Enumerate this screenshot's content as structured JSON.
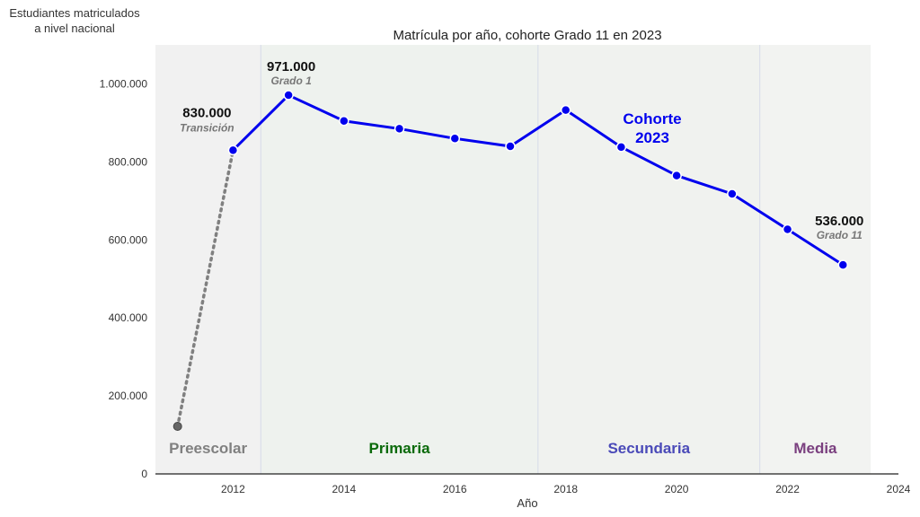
{
  "chart_data": {
    "type": "line",
    "title": "Matrícula por año, cohorte Grado 11 en 2023",
    "xlabel": "Año",
    "ylabel": "Estudiantes matriculados a nivel nacional",
    "xlim": [
      2010.6,
      2024
    ],
    "ylim": [
      0,
      1100000
    ],
    "x_ticks": [
      "2012",
      "2014",
      "2016",
      "2018",
      "2020",
      "2022",
      "2024"
    ],
    "y_ticks": [
      "0",
      "200.000",
      "400.000",
      "600.000",
      "800.000",
      "1.000.000"
    ],
    "grid": false,
    "series": [
      {
        "name": "Cohorte 2023",
        "color": "#0000ee",
        "x": [
          2012,
          2013,
          2014,
          2015,
          2016,
          2017,
          2018,
          2019,
          2020,
          2021,
          2022,
          2023
        ],
        "y": [
          830000,
          971000,
          905000,
          885000,
          860000,
          840000,
          933000,
          838000,
          765000,
          718000,
          627000,
          536000
        ]
      },
      {
        "name": "Preescolar (dotted)",
        "color": "#808080",
        "style": "dotted",
        "x": [
          2011,
          2012
        ],
        "y": [
          122000,
          830000
        ]
      }
    ],
    "stages": [
      {
        "label": "Preescolar",
        "from": 2010.6,
        "to": 2012.5,
        "color": "#808080",
        "background": "#f1f1f1"
      },
      {
        "label": "Primaria",
        "from": 2012.5,
        "to": 2017.5,
        "color": "#0a6a0a",
        "background": "#eef2ee"
      },
      {
        "label": "Secundaria",
        "from": 2017.5,
        "to": 2021.5,
        "color": "#4a4ab8",
        "background": "#f0f2ef"
      },
      {
        "label": "Media",
        "from": 2021.5,
        "to": 2023.5,
        "color": "#7a3f7f",
        "background": "#f2f3f1"
      }
    ],
    "annotations": [
      {
        "value": "830.000",
        "sub": "Transición",
        "x": 2012,
        "y": 830000
      },
      {
        "value": "971.000",
        "sub": "Grado 1",
        "x": 2013,
        "y": 971000
      },
      {
        "value": "536.000",
        "sub": "Grado 11",
        "x": 2023,
        "y": 536000
      }
    ],
    "series_label": [
      "Cohorte",
      "2023"
    ]
  }
}
